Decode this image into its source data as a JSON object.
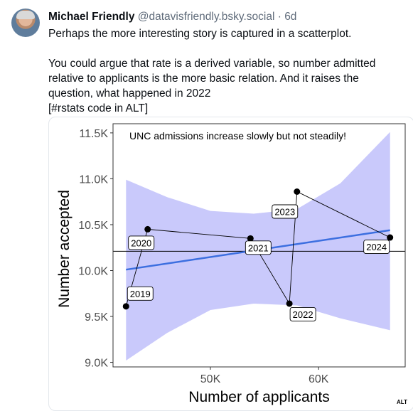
{
  "post": {
    "author_name": "Michael Friendly",
    "author_handle": "@datavisfriendly.bsky.social",
    "separator": "·",
    "timestamp": "6d",
    "paragraphs": [
      "Perhaps the more interesting story is captured in a scatterplot.",
      "",
      "You could argue that rate is a derived variable, so number admitted relative to applicants is the more basic relation. And it raises the question, what happened in 2022",
      "[#rstats code in ALT]"
    ],
    "alt_badge": "ALT"
  },
  "colors": {
    "text": "#0b0f14",
    "muted": "#5f6b7a",
    "band": "#c9c9fb",
    "fit_line": "#3c6fe0",
    "point": "#000000"
  },
  "chart_data": {
    "type": "scatter",
    "title": "UNC admissions increase slowly but not steadily!",
    "xlabel": "Number of applicants",
    "ylabel": "Number accepted",
    "xlim": [
      41000,
      68000
    ],
    "ylim": [
      8950,
      11600
    ],
    "x_ticks": [
      50000,
      60000
    ],
    "x_tick_labels": [
      "50K",
      "60K"
    ],
    "y_ticks": [
      9000,
      9500,
      10000,
      10500,
      11000,
      11500
    ],
    "y_tick_labels": [
      "9.0K",
      "9.5K",
      "10.0K",
      "10.5K",
      "11.0K",
      "11.5K"
    ],
    "points": [
      {
        "label": "2019",
        "x": 42200,
        "y": 9610
      },
      {
        "label": "2020",
        "x": 44200,
        "y": 10450
      },
      {
        "label": "2021",
        "x": 53700,
        "y": 10350
      },
      {
        "label": "2022",
        "x": 57300,
        "y": 9640
      },
      {
        "label": "2023",
        "x": 58000,
        "y": 10860
      },
      {
        "label": "2024",
        "x": 66600,
        "y": 10360
      }
    ],
    "fit_line": {
      "x": [
        42200,
        66600
      ],
      "y": [
        10010,
        10440
      ]
    },
    "band": {
      "x": [
        42200,
        46000,
        50000,
        54000,
        58000,
        62000,
        66600
      ],
      "lower": [
        9020,
        9320,
        9570,
        9640,
        9620,
        9480,
        9350
      ],
      "upper": [
        10990,
        10800,
        10650,
        10620,
        10670,
        10950,
        11510
      ]
    },
    "hline": 10210,
    "grid": false,
    "legend": "none"
  }
}
